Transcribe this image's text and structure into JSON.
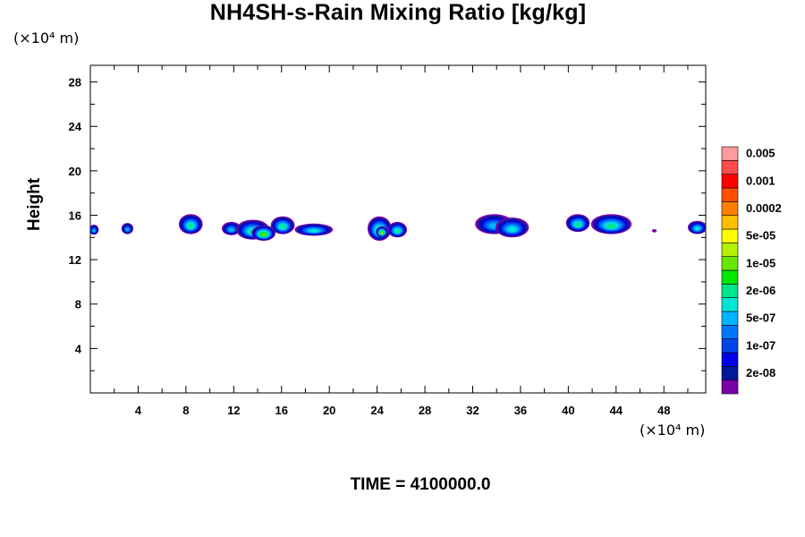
{
  "chart_data": {
    "type": "heatmap",
    "title": "NH4SH-s-Rain Mixing Ratio [kg/kg]",
    "ylabel": "Height",
    "xunit": "(×10⁴ m)",
    "yunit": "(×10⁴ m)",
    "xlim": [
      0,
      51.5
    ],
    "ylim": [
      0,
      29.5
    ],
    "xticks": [
      4,
      8,
      12,
      16,
      20,
      24,
      28,
      32,
      36,
      40,
      44,
      48
    ],
    "yticks": [
      4,
      8,
      12,
      16,
      20,
      24,
      28
    ],
    "footer": "TIME = 4100000.0",
    "colorbar": {
      "colors": [
        "#7a00a8",
        "#001a99",
        "#0000e6",
        "#0044e6",
        "#0077ff",
        "#00b4ff",
        "#00e6d6",
        "#00e68c",
        "#00e600",
        "#66e600",
        "#b4f000",
        "#ffff00",
        "#ffbf00",
        "#ff8000",
        "#ff5000",
        "#ff0000",
        "#ff4d4d",
        "#ff9a9a"
      ],
      "labels": [
        "2e-08",
        "1e-07",
        "5e-07",
        "2e-06",
        "1e-05",
        "5e-05",
        "0.0002",
        "0.001",
        "0.005"
      ]
    },
    "cells": [
      {
        "x": 0.3,
        "y": 14.7,
        "rx": 0.4,
        "ry": 0.45,
        "level": 5
      },
      {
        "x": 3.1,
        "y": 14.8,
        "rx": 0.5,
        "ry": 0.5,
        "level": 5
      },
      {
        "x": 8.4,
        "y": 15.2,
        "rx": 1.0,
        "ry": 0.9,
        "level": 7
      },
      {
        "x": 11.8,
        "y": 14.8,
        "rx": 0.8,
        "ry": 0.6,
        "level": 5
      },
      {
        "x": 13.6,
        "y": 14.7,
        "rx": 1.4,
        "ry": 0.9,
        "level": 7
      },
      {
        "x": 14.5,
        "y": 14.4,
        "rx": 1.0,
        "ry": 0.7,
        "level": 9
      },
      {
        "x": 16.1,
        "y": 15.1,
        "rx": 1.0,
        "ry": 0.8,
        "level": 7
      },
      {
        "x": 18.7,
        "y": 14.7,
        "rx": 1.6,
        "ry": 0.55,
        "level": 6
      },
      {
        "x": 24.2,
        "y": 14.8,
        "rx": 1.0,
        "ry": 1.1,
        "level": 8
      },
      {
        "x": 24.4,
        "y": 14.5,
        "rx": 0.5,
        "ry": 0.5,
        "level": 10
      },
      {
        "x": 25.7,
        "y": 14.7,
        "rx": 0.8,
        "ry": 0.7,
        "level": 7
      },
      {
        "x": 33.8,
        "y": 15.2,
        "rx": 1.6,
        "ry": 0.9,
        "level": 5
      },
      {
        "x": 35.3,
        "y": 14.9,
        "rx": 1.4,
        "ry": 0.9,
        "level": 6
      },
      {
        "x": 40.8,
        "y": 15.3,
        "rx": 1.0,
        "ry": 0.8,
        "level": 7
      },
      {
        "x": 43.6,
        "y": 15.2,
        "rx": 1.7,
        "ry": 0.9,
        "level": 7
      },
      {
        "x": 47.2,
        "y": 14.6,
        "rx": 0.2,
        "ry": 0.15,
        "level": 0
      },
      {
        "x": 50.8,
        "y": 14.9,
        "rx": 0.8,
        "ry": 0.6,
        "level": 6
      }
    ]
  }
}
